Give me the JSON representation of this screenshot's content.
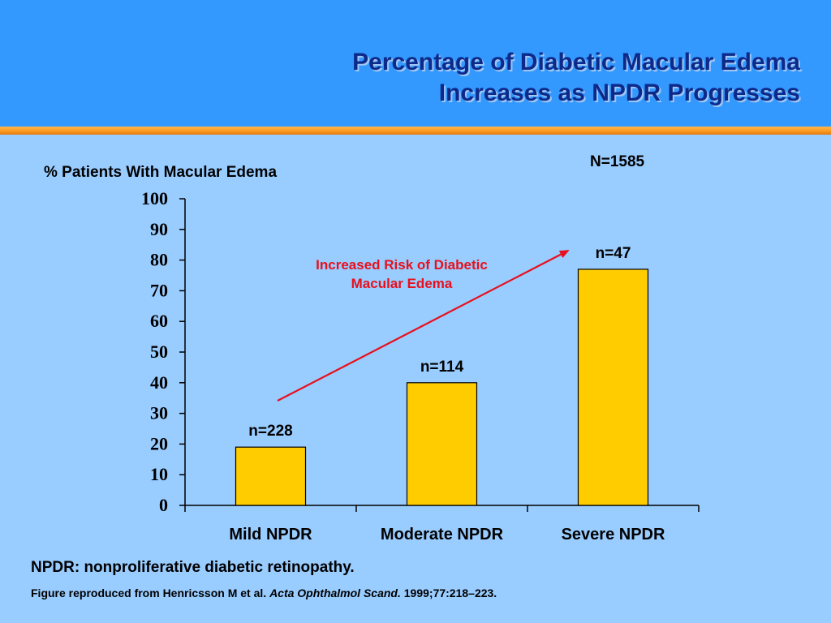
{
  "slide": {
    "title_line1": "Percentage of Diabetic Macular Edema",
    "title_line2": "Increases as NPDR Progresses",
    "total_n": "N=1585",
    "footnote": "NPDR: nonproliferative diabetic retinopathy.",
    "citation": {
      "prefix": "Figure reproduced from Henricsson M et al.",
      "journal": "Acta Ophthalmol Scand.",
      "suffix": "1999;77:218–223."
    }
  },
  "chart_data": {
    "type": "bar",
    "ylabel": "% Patients With Macular Edema",
    "ylim": [
      0,
      100
    ],
    "yticks": [
      0,
      10,
      20,
      30,
      40,
      50,
      60,
      70,
      80,
      90,
      100
    ],
    "categories": [
      "Mild NPDR",
      "Moderate NPDR",
      "Severe NPDR"
    ],
    "values": [
      19,
      40,
      77
    ],
    "bar_labels": [
      "n=228",
      "n=114",
      "n=47"
    ],
    "bar_color": "#ffcc00",
    "annotation": {
      "text_line1": "Increased Risk of Diabetic",
      "text_line2": "Macular Edema",
      "color": "#e8101c"
    },
    "grid": false,
    "legend": "none"
  }
}
